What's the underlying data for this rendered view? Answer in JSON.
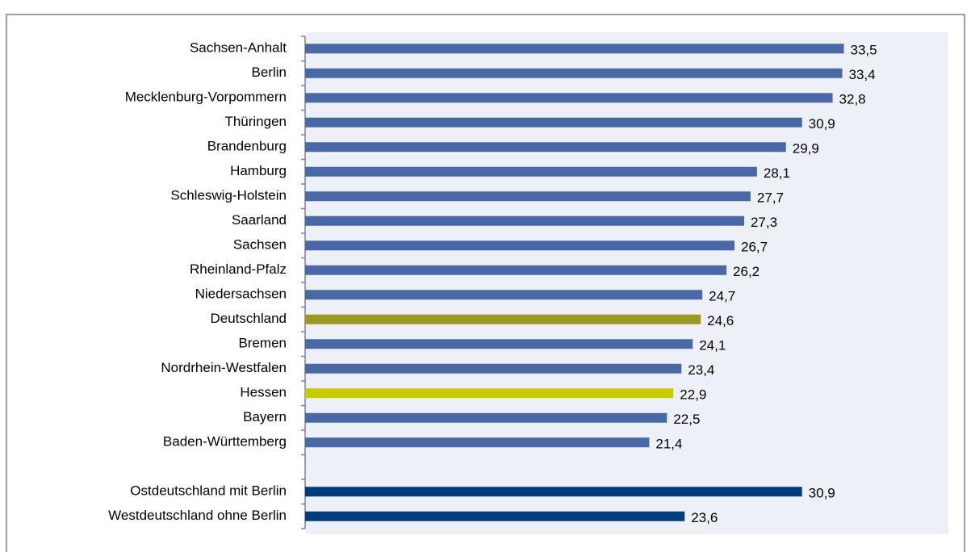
{
  "chart_data": {
    "type": "barh",
    "categories": [
      "Sachsen-Anhalt",
      "Berlin",
      "Mecklenburg-Vorpommern",
      "Thüringen",
      "Brandenburg",
      "Hamburg",
      "Schleswig-Holstein",
      "Saarland",
      "Sachsen",
      "Rheinland-Pfalz",
      "Niedersachsen",
      "Deutschland",
      "Bremen",
      "Nordrhein-Westfalen",
      "Hessen",
      "Bayern",
      "Baden-Württemberg",
      null,
      "Ostdeutschland mit Berlin",
      "Westdeutschland ohne Berlin"
    ],
    "values": [
      33.5,
      33.4,
      32.8,
      30.9,
      29.9,
      28.1,
      27.7,
      27.3,
      26.7,
      26.2,
      24.7,
      24.6,
      24.1,
      23.4,
      22.9,
      22.5,
      21.4,
      null,
      30.9,
      23.6
    ],
    "value_labels": [
      "33,5",
      "33,4",
      "32,8",
      "30,9",
      "29,9",
      "28,1",
      "27,7",
      "27,3",
      "26,7",
      "26,2",
      "24,7",
      "24,6",
      "24,1",
      "23,4",
      "22,9",
      "22,5",
      "21,4",
      null,
      "30,9",
      "23,6"
    ],
    "colors": [
      "#4a68a6",
      "#4a68a6",
      "#4a68a6",
      "#4a68a6",
      "#4a68a6",
      "#4a68a6",
      "#4a68a6",
      "#4a68a6",
      "#4a68a6",
      "#4a68a6",
      "#4a68a6",
      "#9a9a22",
      "#4a68a6",
      "#4a68a6",
      "#c9cc00",
      "#4a68a6",
      "#4a68a6",
      null,
      "#003b7c",
      "#003b7c"
    ],
    "xlim": [
      0,
      40
    ]
  }
}
